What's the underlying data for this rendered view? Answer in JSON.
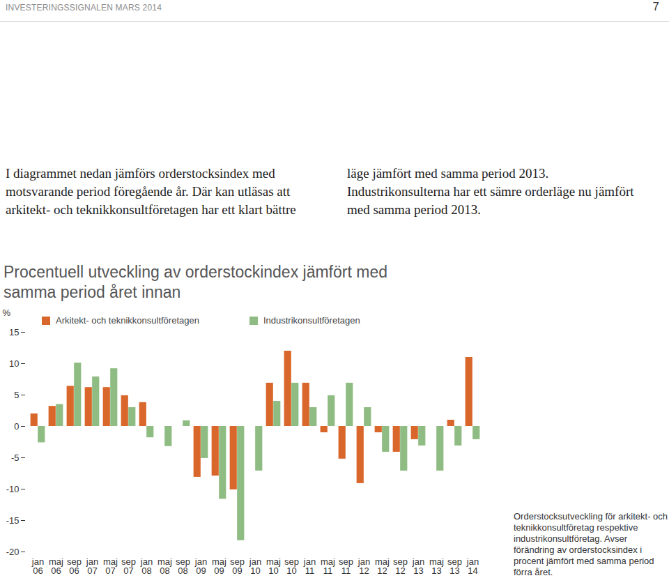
{
  "header": "INVESTERINGSSIGNALEN MARS 2014",
  "page_number": "7",
  "intro": "I diagrammet nedan jämförs orderstocksindex med motsvarande period föregående år. Där kan utläsas att arkitekt- och teknikkonsultföretagen har ett klart bättre läge jämfört med samma period 2013. Industrikonsulterna har ett sämre orderläge nu jämfört med samma period 2013.",
  "chart_data": {
    "type": "bar",
    "title": "Procentuell utveckling av orderstockindex jämfört med samma period året innan",
    "y_label": "%",
    "caption": "Orderstocksutveckling för arkitekt- och teknikkonsultföretag respektive industrikonsultföretag. Avser förändring av orderstocksindex i procent jämfört med samma period förra året.",
    "categories": [
      "jan 06",
      "maj 06",
      "sep 06",
      "jan 07",
      "maj 07",
      "sep 07",
      "jan 08",
      "maj 08",
      "sep 08",
      "jan 09",
      "maj 09",
      "sep 09",
      "jan 10",
      "maj 10",
      "sep 10",
      "jan 11",
      "maj 11",
      "sep 11",
      "jan 12",
      "maj 12",
      "sep 12",
      "jan 13",
      "maj 13",
      "sep 13",
      "jan 14"
    ],
    "series": [
      {
        "name": "Arkitekt- och teknikkonsultföretagen",
        "color": "#d9662a",
        "values": [
          2.0,
          3.2,
          6.4,
          6.2,
          6.2,
          4.9,
          3.8,
          0,
          0,
          -8.1,
          -7.9,
          -10.1,
          0,
          6.9,
          12.0,
          6.9,
          -1.0,
          -5.2,
          -9.1,
          -1.0,
          -4.1,
          -2.1,
          0,
          1.0,
          11.0
        ]
      },
      {
        "name": "Industrikonsultföretagen",
        "color": "#8fbc82",
        "values": [
          -2.6,
          3.5,
          10.1,
          7.9,
          9.2,
          3.0,
          -1.8,
          -3.2,
          0.9,
          -5.1,
          -11.6,
          -18.2,
          -7.1,
          4.0,
          6.9,
          3.0,
          4.9,
          6.9,
          3.0,
          -4.1,
          -7.1,
          -3.1,
          -7.1,
          -3.1,
          -2.1
        ]
      }
    ],
    "ylim": [
      -20,
      15
    ],
    "yticks": [
      -20,
      -15,
      -10,
      -5,
      0,
      5,
      10,
      15
    ],
    "grid": false,
    "legend": "top"
  }
}
